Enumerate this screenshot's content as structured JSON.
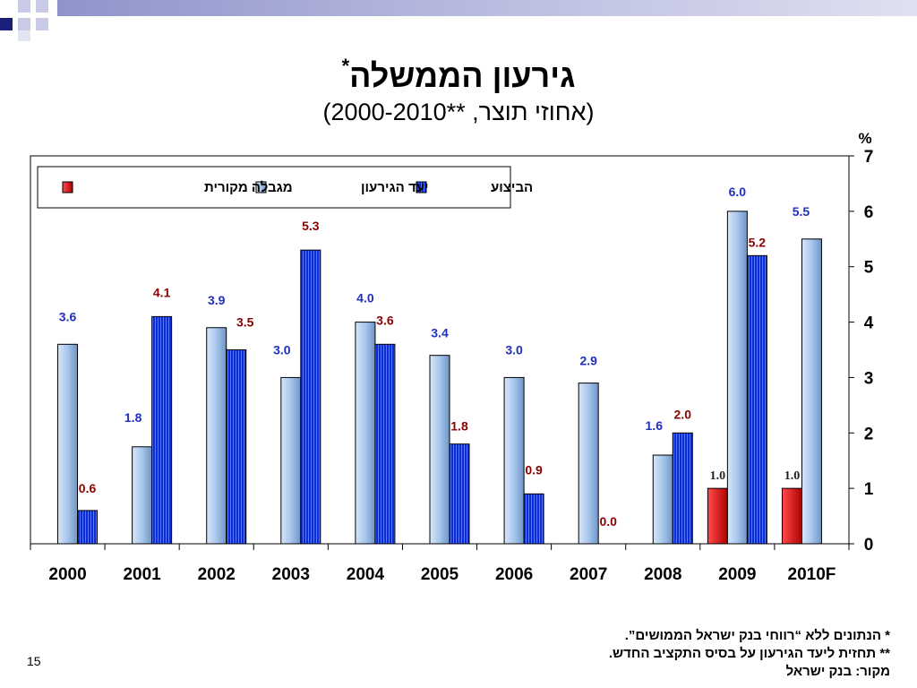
{
  "slide": {
    "title": "גירעון הממשלה",
    "title_mark": "*",
    "subtitle": "(אחוזי תוצר, **2000-2010)",
    "footnotes": [
      "*  הנתונים ללא “רווחי בנק ישראל הממושים”.",
      "** תחזית ליעד הגירעון על בסיס התקציב החדש.",
      "מקור: בנק ישראל"
    ],
    "slide_number": "15"
  },
  "colors": {
    "original_limit": "#e00000",
    "target": "#a7c6ec",
    "actual": "#0a2dd6",
    "label_blue": "#1f2fbf",
    "label_red": "#8b0000",
    "label_black": "#222222",
    "deco_dark": "#1a1f7a",
    "deco_light": "#c9cbe6"
  },
  "chart_data": {
    "type": "bar",
    "y_unit_label": "%",
    "categories": [
      "2000",
      "2001",
      "2002",
      "2003",
      "2004",
      "2005",
      "2006",
      "2007",
      "2008",
      "2009",
      "2010F"
    ],
    "ylim": [
      0,
      7
    ],
    "yticks": [
      0,
      1,
      2,
      3,
      4,
      5,
      6,
      7
    ],
    "y_axis_position": "right",
    "legend_position": "top-left",
    "series": [
      {
        "name": "מגבלה מקורית",
        "color": "#e00000",
        "label_color": "#222222",
        "values": [
          null,
          null,
          null,
          null,
          null,
          null,
          null,
          null,
          null,
          1.0,
          1.0
        ],
        "labels": [
          "",
          "",
          "",
          "",
          "",
          "",
          "",
          "",
          "",
          "1.0",
          "1.0"
        ]
      },
      {
        "name": "יעד הגירעון",
        "color": "#a7c6ec",
        "label_color": "#1f2fbf",
        "values": [
          3.6,
          1.75,
          3.9,
          3.0,
          4.0,
          3.4,
          3.0,
          2.9,
          1.6,
          6.0,
          5.5
        ],
        "labels": [
          "3.6",
          "1.8",
          "3.9",
          "3.0",
          "4.0",
          "3.4",
          "3.0",
          "2.9",
          "1.6",
          "6.0",
          "5.5"
        ]
      },
      {
        "name": "הביצוע",
        "color": "#0a2dd6",
        "label_color": "#8b0000",
        "values": [
          0.6,
          4.1,
          3.5,
          5.3,
          3.6,
          1.8,
          0.9,
          0.0,
          2.0,
          5.2,
          null
        ],
        "labels": [
          "0.6",
          "4.1",
          "3.5",
          "5.3",
          "3.6",
          "1.8",
          "0.9",
          "0.0",
          "2.0",
          "5.2",
          ""
        ]
      }
    ]
  }
}
